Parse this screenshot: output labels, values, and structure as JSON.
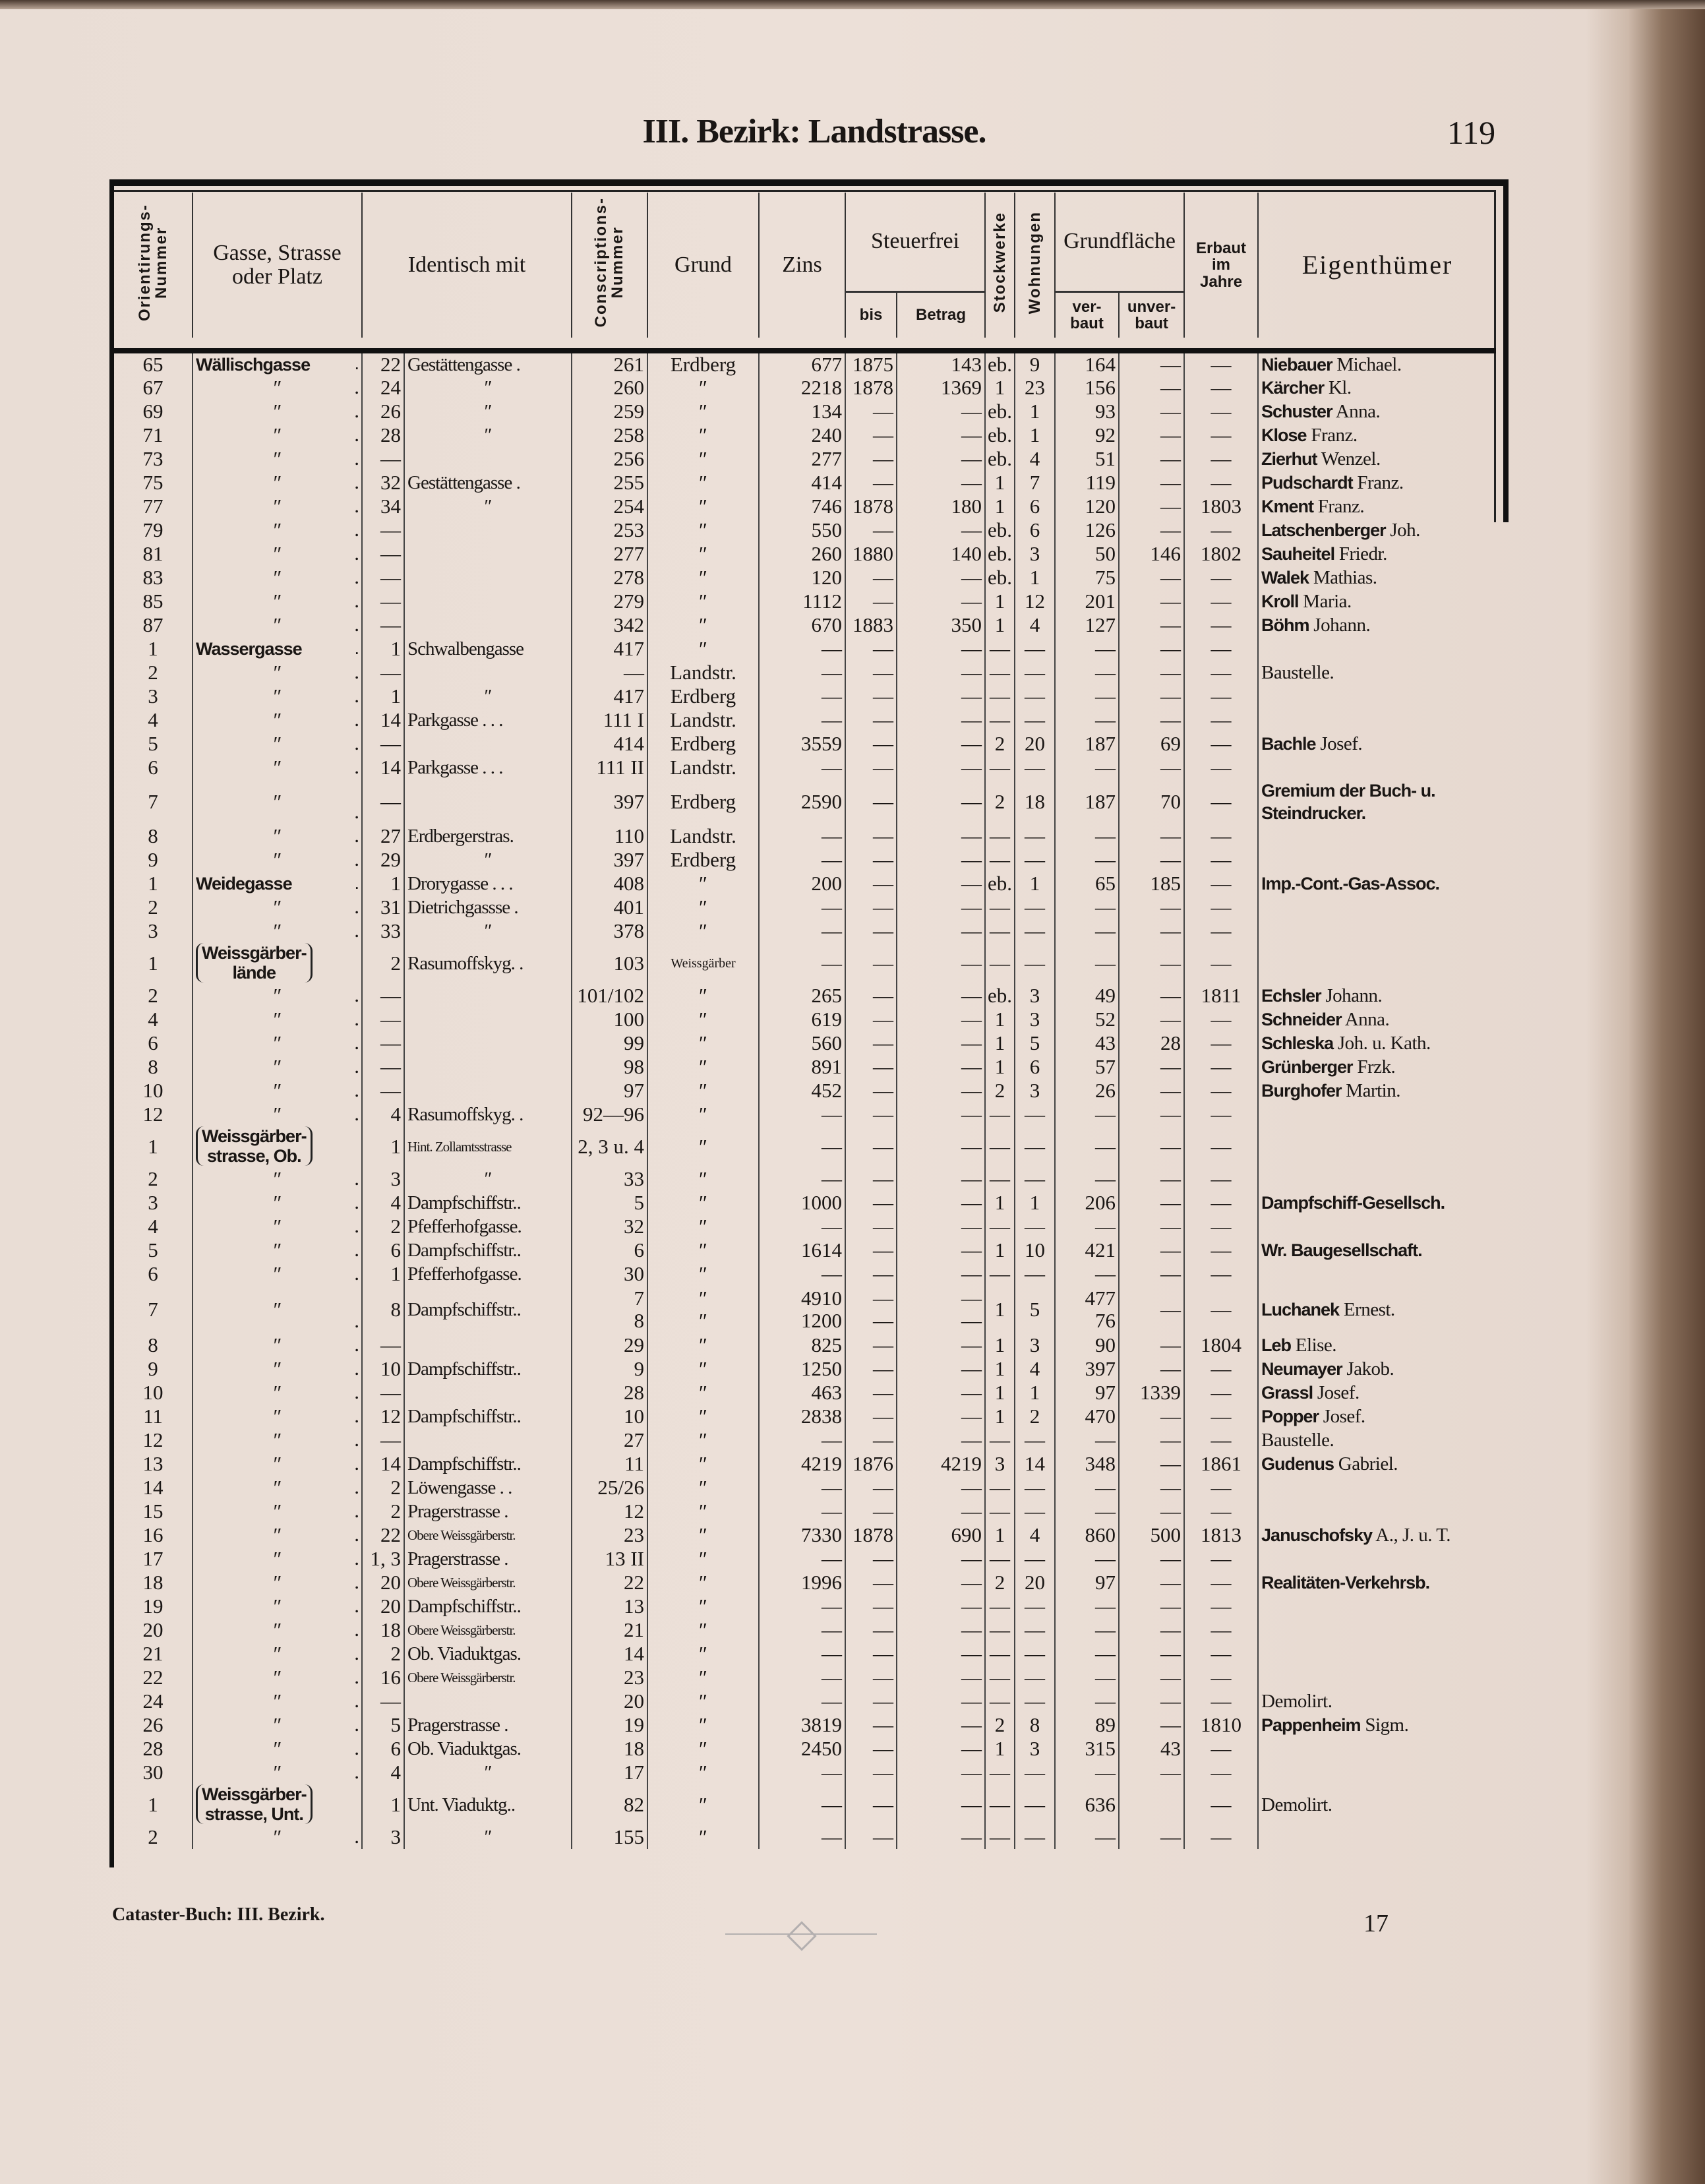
{
  "page": {
    "title": "III. Bezirk: Landstrasse.",
    "page_number": "119",
    "footer_left": "Cataster-Buch: III. Bezirk.",
    "footer_right": "17"
  },
  "header": {
    "ord": "Orientirungs-\nNummer",
    "street": "Gasse, Strasse\noder Platz",
    "ident": "Identisch mit",
    "consc": "Conscriptions-\nNummer",
    "grund": "Grund",
    "zins": "Zins",
    "steuerfrei": "Steuerfrei",
    "bis": "bis",
    "betrag": "Betrag",
    "stock": "Stockwerke",
    "wohn": "Wohnungen",
    "grundflaeche": "Grundfläche",
    "verbaut": "ver-\nbaut",
    "unverbaut": "unver-\nbaut",
    "erbaut": "Erbaut\nim\nJahre",
    "owner": "Eigenthümer"
  },
  "rows": [
    [
      "65",
      "Wällischgasse",
      "22",
      "Gestättengasse .",
      "261",
      "Erdberg",
      "677",
      "1875",
      "143",
      "eb.",
      "9",
      "164",
      "—",
      "—",
      "Niebauer",
      "Michael."
    ],
    [
      "67",
      "″",
      "24",
      "″",
      "260",
      "″",
      "2218",
      "1878",
      "1369",
      "1",
      "23",
      "156",
      "—",
      "—",
      "Kärcher",
      "Kl."
    ],
    [
      "69",
      "″",
      "26",
      "″",
      "259",
      "″",
      "134",
      "—",
      "—",
      "eb.",
      "1",
      "93",
      "—",
      "—",
      "Schuster",
      "Anna."
    ],
    [
      "71",
      "″",
      "28",
      "″",
      "258",
      "″",
      "240",
      "—",
      "—",
      "eb.",
      "1",
      "92",
      "—",
      "—",
      "Klose",
      "Franz."
    ],
    [
      "73",
      "″",
      "—",
      "",
      "256",
      "″",
      "277",
      "—",
      "—",
      "eb.",
      "4",
      "51",
      "—",
      "—",
      "Zierhut",
      "Wenzel."
    ],
    [
      "75",
      "″",
      "32",
      "Gestättengasse .",
      "255",
      "″",
      "414",
      "—",
      "—",
      "1",
      "7",
      "119",
      "—",
      "—",
      "Pudschardt",
      "Franz."
    ],
    [
      "77",
      "″",
      "34",
      "″",
      "254",
      "″",
      "746",
      "1878",
      "180",
      "1",
      "6",
      "120",
      "—",
      "1803",
      "Kment",
      "Franz."
    ],
    [
      "79",
      "″",
      "—",
      "",
      "253",
      "″",
      "550",
      "—",
      "—",
      "eb.",
      "6",
      "126",
      "—",
      "—",
      "Latschenberger",
      "Joh."
    ],
    [
      "81",
      "″",
      "—",
      "",
      "277",
      "″",
      "260",
      "1880",
      "140",
      "eb.",
      "3",
      "50",
      "146",
      "1802",
      "Sauheitel",
      "Friedr."
    ],
    [
      "83",
      "″",
      "—",
      "",
      "278",
      "″",
      "120",
      "—",
      "—",
      "eb.",
      "1",
      "75",
      "—",
      "—",
      "Walek",
      "Mathias."
    ],
    [
      "85",
      "″",
      "—",
      "",
      "279",
      "″",
      "1112",
      "—",
      "—",
      "1",
      "12",
      "201",
      "—",
      "—",
      "Kroll",
      "Maria."
    ],
    [
      "87",
      "″",
      "—",
      "",
      "342",
      "″",
      "670",
      "1883",
      "350",
      "1",
      "4",
      "127",
      "—",
      "—",
      "Böhm",
      "Johann."
    ],
    [
      "1",
      "Wassergasse",
      "1",
      "Schwalbengasse",
      "417",
      "″",
      "—",
      "—",
      "—",
      "—",
      "—",
      "—",
      "—",
      "—",
      "",
      ""
    ],
    [
      "2",
      "″",
      "—",
      "",
      "—",
      "Landstr.",
      "—",
      "—",
      "—",
      "—",
      "—",
      "—",
      "—",
      "—",
      "",
      "Baustelle."
    ],
    [
      "3",
      "″",
      "1",
      "″",
      "417",
      "Erdberg",
      "—",
      "—",
      "—",
      "—",
      "—",
      "—",
      "—",
      "—",
      "",
      ""
    ],
    [
      "4",
      "″",
      "14",
      "Parkgasse . . .",
      "111 I",
      "Landstr.",
      "—",
      "—",
      "—",
      "—",
      "—",
      "—",
      "—",
      "—",
      "",
      ""
    ],
    [
      "5",
      "″",
      "—",
      "",
      "414",
      "Erdberg",
      "3559",
      "—",
      "—",
      "2",
      "20",
      "187",
      "69",
      "—",
      "Bachle",
      "Josef."
    ],
    [
      "6",
      "″",
      "14",
      "Parkgasse . . .",
      "111 II",
      "Landstr.",
      "—",
      "—",
      "—",
      "—",
      "—",
      "—",
      "—",
      "—",
      "",
      ""
    ],
    [
      "7",
      "″",
      "—",
      "",
      "397",
      "Erdberg",
      "2590",
      "—",
      "—",
      "2",
      "18",
      "187",
      "70",
      "—",
      "Gremium der Buch- u.\nSteindrucker.",
      ""
    ],
    [
      "8",
      "″",
      "27",
      "Erdbergerstras.",
      "110",
      "Landstr.",
      "—",
      "—",
      "—",
      "—",
      "—",
      "—",
      "—",
      "—",
      "",
      ""
    ],
    [
      "9",
      "″",
      "29",
      "″",
      "397",
      "Erdberg",
      "—",
      "—",
      "—",
      "—",
      "—",
      "—",
      "—",
      "—",
      "",
      ""
    ],
    [
      "1",
      "Weidegasse",
      "1",
      "Drorygasse . . .",
      "408",
      "″",
      "200",
      "—",
      "—",
      "eb.",
      "1",
      "65",
      "185",
      "—",
      "Imp.-Cont.-Gas-Assoc.",
      ""
    ],
    [
      "2",
      "″",
      "31",
      "Dietrichgassse .",
      "401",
      "″",
      "—",
      "—",
      "—",
      "—",
      "—",
      "—",
      "—",
      "—",
      "",
      ""
    ],
    [
      "3",
      "″",
      "33",
      "″",
      "378",
      "″",
      "—",
      "—",
      "—",
      "—",
      "—",
      "—",
      "—",
      "—",
      "",
      ""
    ],
    [
      "1",
      "Weissgärber-\nlände",
      "2",
      "Rasumoffskyg. .",
      "103",
      "Weissgärber",
      "—",
      "—",
      "—",
      "—",
      "—",
      "—",
      "—",
      "—",
      "",
      ""
    ],
    [
      "2",
      "″",
      "—",
      "",
      "101/102",
      "″",
      "265",
      "—",
      "—",
      "eb.",
      "3",
      "49",
      "—",
      "1811",
      "Echsler",
      "Johann."
    ],
    [
      "4",
      "″",
      "—",
      "",
      "100",
      "″",
      "619",
      "—",
      "—",
      "1",
      "3",
      "52",
      "—",
      "—",
      "Schneider",
      "Anna."
    ],
    [
      "6",
      "″",
      "—",
      "",
      "99",
      "″",
      "560",
      "—",
      "—",
      "1",
      "5",
      "43",
      "28",
      "—",
      "Schleska",
      "Joh. u. Kath."
    ],
    [
      "8",
      "″",
      "—",
      "",
      "98",
      "″",
      "891",
      "—",
      "—",
      "1",
      "6",
      "57",
      "—",
      "—",
      "Grünberger",
      "Frzk."
    ],
    [
      "10",
      "″",
      "—",
      "",
      "97",
      "″",
      "452",
      "—",
      "—",
      "2",
      "3",
      "26",
      "—",
      "—",
      "Burghofer",
      "Martin."
    ],
    [
      "12",
      "″",
      "4",
      "Rasumoffskyg. .",
      "92—96",
      "″",
      "—",
      "—",
      "—",
      "—",
      "—",
      "—",
      "—",
      "—",
      "",
      ""
    ],
    [
      "1",
      "Weissgärber-\nstrasse, Ob.",
      "1",
      "Hint. Zollamtsstrasse",
      "2, 3 u. 4",
      "″",
      "—",
      "—",
      "—",
      "—",
      "—",
      "—",
      "—",
      "—",
      "",
      ""
    ],
    [
      "2",
      "″",
      "3",
      "″",
      "33",
      "″",
      "—",
      "—",
      "—",
      "—",
      "—",
      "—",
      "—",
      "—",
      "",
      ""
    ],
    [
      "3",
      "″",
      "4",
      "Dampfschiffstr..",
      "5",
      "″",
      "1000",
      "—",
      "—",
      "1",
      "1",
      "206",
      "—",
      "—",
      "Dampfschiff-Gesellsch.",
      ""
    ],
    [
      "4",
      "″",
      "2",
      "Pfefferhofgasse.",
      "32",
      "″",
      "—",
      "—",
      "—",
      "—",
      "—",
      "—",
      "—",
      "—",
      "",
      ""
    ],
    [
      "5",
      "″",
      "6",
      "Dampfschiffstr..",
      "6",
      "″",
      "1614",
      "—",
      "—",
      "1",
      "10",
      "421",
      "—",
      "—",
      "Wr. Baugesellschaft.",
      ""
    ],
    [
      "6",
      "″",
      "1",
      "Pfefferhofgasse.",
      "30",
      "″",
      "—",
      "—",
      "—",
      "—",
      "—",
      "—",
      "—",
      "—",
      "",
      ""
    ],
    [
      "7",
      "″",
      "8",
      "Dampfschiffstr..",
      "7\n8",
      "″\n″",
      "4910\n1200",
      "—\n—",
      "—\n—",
      "1",
      "5",
      "477\n76",
      "—",
      "—",
      "Luchanek",
      "Ernest."
    ],
    [
      "8",
      "″",
      "—",
      "",
      "29",
      "″",
      "825",
      "—",
      "—",
      "1",
      "3",
      "90",
      "—",
      "1804",
      "Leb",
      "Elise."
    ],
    [
      "9",
      "″",
      "10",
      "Dampfschiffstr..",
      "9",
      "″",
      "1250",
      "—",
      "—",
      "1",
      "4",
      "397",
      "—",
      "—",
      "Neumayer",
      "Jakob."
    ],
    [
      "10",
      "″",
      "—",
      "",
      "28",
      "″",
      "463",
      "—",
      "—",
      "1",
      "1",
      "97",
      "1339",
      "—",
      "Grassl",
      "Josef."
    ],
    [
      "11",
      "″",
      "12",
      "Dampfschiffstr..",
      "10",
      "″",
      "2838",
      "—",
      "—",
      "1",
      "2",
      "470",
      "—",
      "—",
      "Popper",
      "Josef."
    ],
    [
      "12",
      "″",
      "—",
      "",
      "27",
      "″",
      "—",
      "—",
      "—",
      "—",
      "—",
      "—",
      "—",
      "—",
      "",
      "Baustelle."
    ],
    [
      "13",
      "″",
      "14",
      "Dampfschiffstr..",
      "11",
      "″",
      "4219",
      "1876",
      "4219",
      "3",
      "14",
      "348",
      "—",
      "1861",
      "Gudenus",
      "Gabriel."
    ],
    [
      "14",
      "″",
      "2",
      "Löwengasse . .",
      "25/26",
      "″",
      "—",
      "—",
      "—",
      "—",
      "—",
      "—",
      "—",
      "—",
      "",
      ""
    ],
    [
      "15",
      "″",
      "2",
      "Pragerstrasse .",
      "12",
      "″",
      "—",
      "—",
      "—",
      "—",
      "—",
      "—",
      "—",
      "—",
      "",
      ""
    ],
    [
      "16",
      "″",
      "22",
      "Obere Weissgärberstr.",
      "23",
      "″",
      "7330",
      "1878",
      "690",
      "1",
      "4",
      "860",
      "500",
      "1813",
      "Januschofsky",
      "A., J. u. T."
    ],
    [
      "17",
      "″",
      "1, 3",
      "Pragerstrasse .",
      "13 II",
      "″",
      "—",
      "—",
      "—",
      "—",
      "—",
      "—",
      "—",
      "—",
      "",
      ""
    ],
    [
      "18",
      "″",
      "20",
      "Obere Weissgärberstr.",
      "22",
      "″",
      "1996",
      "—",
      "—",
      "2",
      "20",
      "97",
      "—",
      "—",
      "Realitäten-Verkehrsb.",
      ""
    ],
    [
      "19",
      "″",
      "20",
      "Dampfschiffstr..",
      "13",
      "″",
      "—",
      "—",
      "—",
      "—",
      "—",
      "—",
      "—",
      "—",
      "",
      ""
    ],
    [
      "20",
      "″",
      "18",
      "Obere Weissgärberstr.",
      "21",
      "″",
      "—",
      "—",
      "—",
      "—",
      "—",
      "—",
      "—",
      "—",
      "",
      ""
    ],
    [
      "21",
      "″",
      "2",
      "Ob. Viaduktgas.",
      "14",
      "″",
      "—",
      "—",
      "—",
      "—",
      "—",
      "—",
      "—",
      "—",
      "",
      ""
    ],
    [
      "22",
      "″",
      "16",
      "Obere Weissgärberstr.",
      "23",
      "″",
      "—",
      "—",
      "—",
      "—",
      "—",
      "—",
      "—",
      "—",
      "",
      ""
    ],
    [
      "24",
      "″",
      "—",
      "",
      "20",
      "″",
      "—",
      "—",
      "—",
      "—",
      "—",
      "—",
      "—",
      "—",
      "",
      "Demolirt."
    ],
    [
      "26",
      "″",
      "5",
      "Pragerstrasse .",
      "19",
      "″",
      "3819",
      "—",
      "—",
      "2",
      "8",
      "89",
      "—",
      "1810",
      "Pappenheim",
      "Sigm."
    ],
    [
      "28",
      "″",
      "6",
      "Ob. Viaduktgas.",
      "18",
      "″",
      "2450",
      "—",
      "—",
      "1",
      "3",
      "315",
      "43",
      "—",
      "",
      ""
    ],
    [
      "30",
      "″",
      "4",
      "″",
      "17",
      "″",
      "—",
      "—",
      "—",
      "—",
      "—",
      "—",
      "—",
      "—",
      "",
      ""
    ],
    [
      "1",
      "Weissgärber-\nstrasse, Unt.",
      "1",
      "Unt. Viaduktg..",
      "82",
      "″",
      "—",
      "—",
      "—",
      "—",
      "—",
      "636",
      "",
      "—",
      "",
      "Demolirt."
    ],
    [
      "2",
      "″",
      "3",
      "″",
      "155",
      "″",
      "—",
      "—",
      "—",
      "—",
      "—",
      "—",
      "—",
      "—",
      "",
      ""
    ]
  ]
}
